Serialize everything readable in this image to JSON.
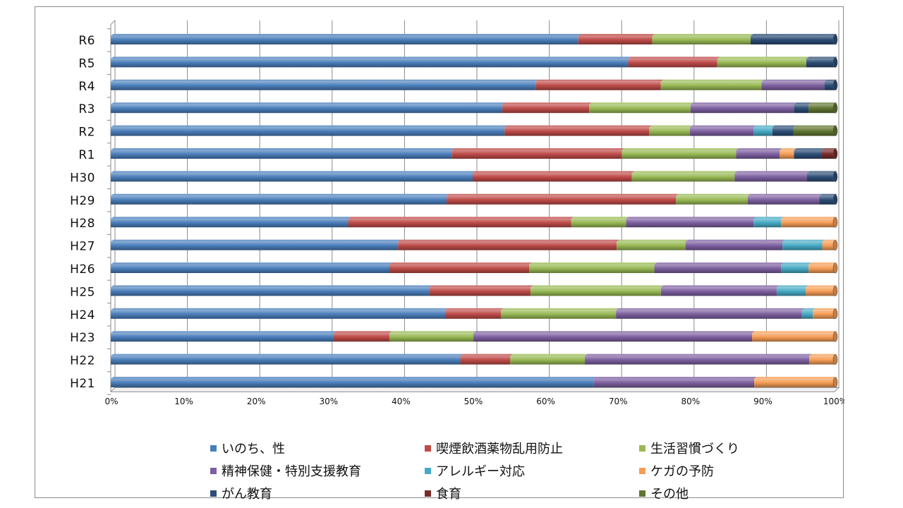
{
  "chart_data": {
    "type": "bar",
    "orientation": "horizontal",
    "stacked": "percent",
    "categories": [
      "H21",
      "H22",
      "H23",
      "H24",
      "H25",
      "H26",
      "H27",
      "H28",
      "H29",
      "H30",
      "R1",
      "R2",
      "R3",
      "R4",
      "R5",
      "R6"
    ],
    "xlim": [
      0,
      100
    ],
    "xticks": [
      "0%",
      "10%",
      "20%",
      "30%",
      "40%",
      "50%",
      "60%",
      "70%",
      "80%",
      "90%",
      "100%"
    ],
    "grid": true,
    "legend_position": "bottom",
    "series": [
      {
        "name": "いのち、性",
        "color": "#4a7ebb",
        "values": [
          66.7,
          48.3,
          30.8,
          46.2,
          44.0,
          38.5,
          39.7,
          32.8,
          46.4,
          50.0,
          47.1,
          54.4,
          54.1,
          58.7,
          71.5,
          64.6
        ]
      },
      {
        "name": "喫煙飲酒薬物乱用防止",
        "color": "#be4b48",
        "values": [
          0,
          6.9,
          7.7,
          7.7,
          14.0,
          19.3,
          30.2,
          30.8,
          31.7,
          22.0,
          23.5,
          20.0,
          12.0,
          17.3,
          12.3,
          10.2
        ]
      },
      {
        "name": "生活習慣づくり",
        "color": "#98b954",
        "values": [
          0,
          10.3,
          11.6,
          15.9,
          18.0,
          17.3,
          9.5,
          7.6,
          9.9,
          14.2,
          15.8,
          5.6,
          14.0,
          13.9,
          12.3,
          13.6
        ]
      },
      {
        "name": "精神保健・特別支援教育",
        "color": "#7d60a0",
        "values": [
          22.2,
          31.0,
          38.5,
          25.7,
          16.0,
          17.5,
          13.4,
          17.6,
          9.9,
          10.0,
          6.0,
          8.8,
          14.3,
          8.7,
          0,
          0
        ]
      },
      {
        "name": "アレルギー対応",
        "color": "#46aac5",
        "values": [
          0,
          0,
          0,
          1.5,
          4.0,
          3.8,
          5.5,
          3.8,
          0,
          0,
          0,
          2.6,
          0,
          0,
          0,
          0
        ]
      },
      {
        "name": "ケガの予防",
        "color": "#f59d56",
        "values": [
          11.1,
          3.5,
          11.4,
          3.0,
          4.0,
          3.6,
          1.7,
          7.4,
          0,
          0,
          2.0,
          0,
          0,
          0,
          0,
          0
        ]
      },
      {
        "name": "がん教育",
        "color": "#2c4d75",
        "values": [
          0,
          0,
          0,
          0,
          0,
          0,
          0,
          0,
          2.1,
          3.8,
          3.8,
          2.9,
          2.0,
          1.4,
          3.9,
          11.6
        ]
      },
      {
        "name": "食育",
        "color": "#772c2a",
        "values": [
          0,
          0,
          0,
          0,
          0,
          0,
          0,
          0,
          0,
          0,
          1.8,
          0,
          0,
          0,
          0,
          0
        ]
      },
      {
        "name": "その他",
        "color": "#5f7530",
        "values": [
          0,
          0,
          0,
          0,
          0,
          0,
          0,
          0,
          0,
          0,
          0,
          5.7,
          3.6,
          0,
          0,
          0
        ]
      }
    ]
  }
}
